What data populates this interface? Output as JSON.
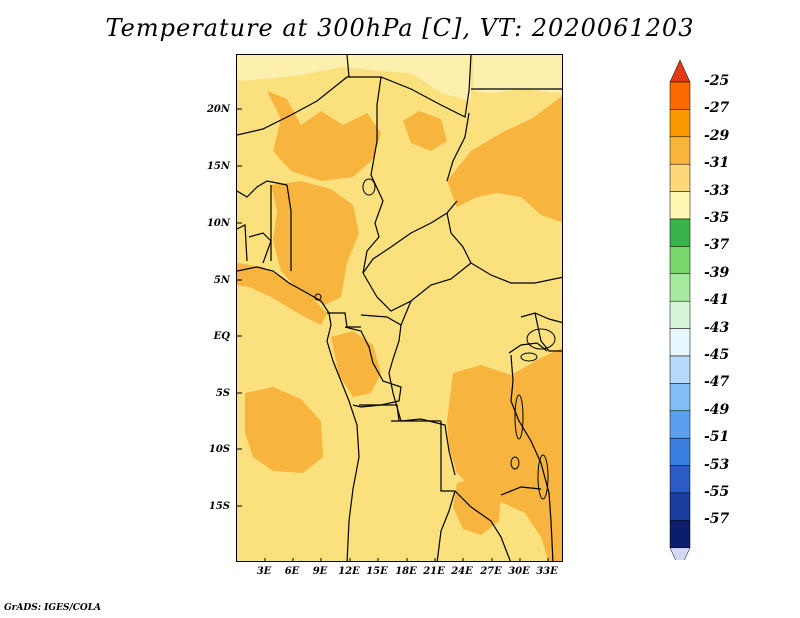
{
  "title": "Temperature at 300hPa [C], VT: 2020061203",
  "credit": "GrADS: IGES/COLA",
  "lat_ticks": [
    "20N",
    "15N",
    "10N",
    "5N",
    "EQ",
    "5S",
    "10S",
    "15S"
  ],
  "lon_ticks": [
    "3E",
    "6E",
    "9E",
    "12E",
    "15E",
    "18E",
    "21E",
    "24E",
    "27E",
    "30E",
    "33E"
  ],
  "colorbar": {
    "labels": [
      "-25",
      "-27",
      "-29",
      "-31",
      "-33",
      "-35",
      "-37",
      "-39",
      "-41",
      "-43",
      "-45",
      "-47",
      "-49",
      "-51",
      "-53",
      "-55",
      "-57"
    ],
    "colors": [
      "#e23a16",
      "#f96b00",
      "#fa9a00",
      "#f8b43b",
      "#fcd87a",
      "#fef6b2",
      "#39b44a",
      "#78d76b",
      "#a6eaa0",
      "#d6f6d8",
      "#e6f6fd",
      "#b4d9f9",
      "#82bef5",
      "#5a9ff0",
      "#3b80e0",
      "#2a5cc4",
      "#1c3ea0",
      "#0c1d6c",
      "#d4d8f8"
    ]
  },
  "map_colors": {
    "background": "#fbe17e",
    "warm": "#f7b43e",
    "cool": "#fdefad",
    "border": "#000000"
  }
}
